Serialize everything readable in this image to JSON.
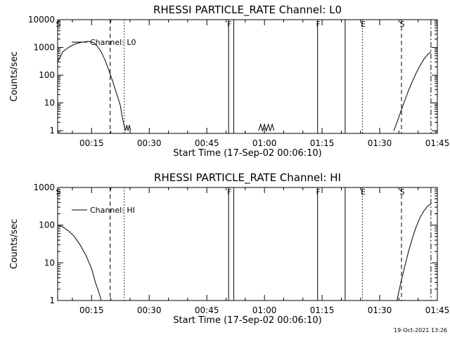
{
  "timestamp": "19-Oct-2021 13:26",
  "chart_data": [
    {
      "type": "line",
      "title": "RHESSI PARTICLE_RATE Channel: L0",
      "xlabel": "Start Time (17-Sep-02 00:06:10)",
      "ylabel": "Counts/sec",
      "legend": {
        "label": "Channel: L0",
        "position": "upper-left"
      },
      "y_scale": "log",
      "xlim": [
        "00:06:10",
        "01:45"
      ],
      "ylim": [
        0.8,
        10000
      ],
      "x_tick_labels": [
        "00:15",
        "00:30",
        "00:45",
        "01:00",
        "01:15",
        "01:30",
        "01:45"
      ],
      "y_tick_labels": [
        "1",
        "10",
        "100",
        "1000",
        "10000"
      ],
      "markers": [
        {
          "label": "S",
          "time": "00:06:10",
          "style": "dash-dot"
        },
        {
          "label": "",
          "time": "00:19:50",
          "style": "dashed"
        },
        {
          "label": "",
          "time": "00:23:30",
          "style": "dotted"
        },
        {
          "label": "F",
          "time": "00:50:40",
          "style": "solid"
        },
        {
          "label": "",
          "time": "00:52:00",
          "style": "solid"
        },
        {
          "label": "F",
          "time": "01:13:50",
          "style": "solid"
        },
        {
          "label": "",
          "time": "01:21:00",
          "style": "solid"
        },
        {
          "label": "E",
          "time": "01:25:30",
          "style": "dotted"
        },
        {
          "label": "S",
          "time": "01:35:40",
          "style": "dashed"
        },
        {
          "label": "",
          "time": "01:43:20",
          "style": "dash-dot"
        }
      ],
      "series": [
        {
          "segments": [
            [
              [
                "00:06:10",
                300
              ],
              [
                "00:07:30",
                700
              ],
              [
                "00:09:00",
                1000
              ],
              [
                "00:10:30",
                1300
              ],
              [
                "00:12:00",
                1500
              ],
              [
                "00:14:00",
                1650
              ],
              [
                "00:15:30",
                1500
              ],
              [
                "00:16:30",
                1100
              ],
              [
                "00:17:30",
                700
              ],
              [
                "00:18:30",
                350
              ],
              [
                "00:19:30",
                150
              ],
              [
                "00:20:30",
                60
              ],
              [
                "00:21:30",
                22
              ],
              [
                "00:22:30",
                8
              ],
              [
                "00:23:00",
                3
              ],
              [
                "00:23:30",
                1.5
              ],
              [
                "00:23:50",
                1
              ],
              [
                "00:24:10",
                1.6
              ],
              [
                "00:24:30",
                1
              ],
              [
                "00:24:50",
                1.6
              ],
              [
                "00:25:10",
                1
              ]
            ],
            [
              [
                "00:58:30",
                1
              ],
              [
                "00:59:00",
                1.7
              ],
              [
                "00:59:30",
                1
              ],
              [
                "01:00:00",
                1.7
              ],
              [
                "01:00:30",
                1
              ],
              [
                "01:01:00",
                1.7
              ],
              [
                "01:01:30",
                1
              ],
              [
                "01:02:00",
                1.7
              ],
              [
                "01:02:30",
                1
              ]
            ],
            [
              [
                "01:33:40",
                1
              ],
              [
                "01:34:30",
                2
              ],
              [
                "01:35:30",
                5
              ],
              [
                "01:36:30",
                12
              ],
              [
                "01:37:30",
                28
              ],
              [
                "01:38:30",
                60
              ],
              [
                "01:39:30",
                120
              ],
              [
                "01:40:30",
                220
              ],
              [
                "01:41:30",
                380
              ],
              [
                "01:42:30",
                560
              ],
              [
                "01:43:20",
                700
              ]
            ]
          ]
        }
      ]
    },
    {
      "type": "line",
      "title": "RHESSI PARTICLE_RATE Channel: HI",
      "xlabel": "Start Time (17-Sep-02 00:06:10)",
      "ylabel": "Counts/sec",
      "legend": {
        "label": "Channel: HI",
        "position": "upper-left"
      },
      "y_scale": "log",
      "xlim": [
        "00:06:10",
        "01:45"
      ],
      "ylim": [
        1,
        1000
      ],
      "x_tick_labels": [
        "00:15",
        "00:30",
        "00:45",
        "01:00",
        "01:15",
        "01:30",
        "01:45"
      ],
      "y_tick_labels": [
        "1",
        "10",
        "100",
        "1000"
      ],
      "markers": [
        {
          "label": "S",
          "time": "00:06:10",
          "style": "dash-dot"
        },
        {
          "label": "",
          "time": "00:19:50",
          "style": "dashed"
        },
        {
          "label": "",
          "time": "00:23:30",
          "style": "dotted"
        },
        {
          "label": "F",
          "time": "00:50:40",
          "style": "solid"
        },
        {
          "label": "",
          "time": "00:52:00",
          "style": "solid"
        },
        {
          "label": "F",
          "time": "01:13:50",
          "style": "solid"
        },
        {
          "label": "",
          "time": "01:21:00",
          "style": "solid"
        },
        {
          "label": "E",
          "time": "01:25:30",
          "style": "dotted"
        },
        {
          "label": "S",
          "time": "01:35:40",
          "style": "dashed"
        },
        {
          "label": "",
          "time": "01:43:20",
          "style": "dash-dot"
        }
      ],
      "series": [
        {
          "segments": [
            [
              [
                "00:06:10",
                100
              ],
              [
                "00:07:30",
                90
              ],
              [
                "00:09:00",
                70
              ],
              [
                "00:10:30",
                50
              ],
              [
                "00:12:00",
                30
              ],
              [
                "00:13:30",
                16
              ],
              [
                "00:15:00",
                7
              ],
              [
                "00:16:00",
                3
              ],
              [
                "00:17:00",
                1.5
              ],
              [
                "00:17:30",
                1
              ]
            ],
            [
              [
                "01:34:30",
                1
              ],
              [
                "01:35:30",
                3
              ],
              [
                "01:36:30",
                8
              ],
              [
                "01:37:30",
                20
              ],
              [
                "01:38:30",
                45
              ],
              [
                "01:39:30",
                90
              ],
              [
                "01:40:30",
                160
              ],
              [
                "01:41:30",
                240
              ],
              [
                "01:42:30",
                320
              ],
              [
                "01:43:20",
                370
              ]
            ]
          ]
        }
      ]
    }
  ]
}
